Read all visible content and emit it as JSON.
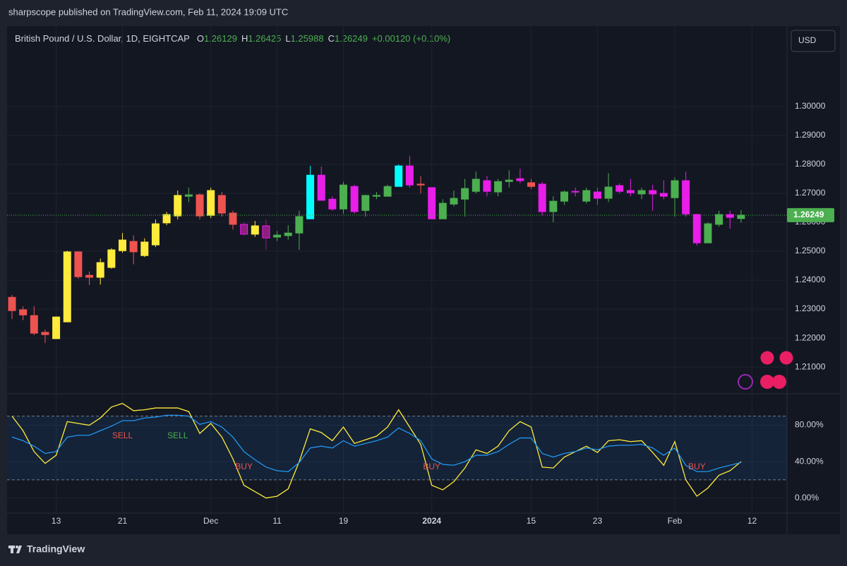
{
  "header": {
    "publisher": "sharpscope published on TradingView.com, Feb 11, 2024 19:09 UTC",
    "currency": "USD",
    "footer": "TradingView"
  },
  "chart_data": [
    {
      "type": "candlestick",
      "title": "British Pound / U.S. Dollar, 1D, EIGHTCAP",
      "legend_fields": [
        {
          "label": "O",
          "value": 1.26129
        },
        {
          "label": "H",
          "value": 1.26425
        },
        {
          "label": "L",
          "value": 1.25988
        },
        {
          "label": "C",
          "value": 1.26249
        }
      ],
      "change": "+0.00120 (+0.10%)",
      "last_price": 1.26249,
      "last_price_color": "#4caf50",
      "categories": [
        null,
        null,
        null,
        null,
        "13",
        null,
        null,
        null,
        null,
        null,
        "21",
        null,
        null,
        null,
        null,
        null,
        null,
        null,
        "Dec",
        null,
        null,
        null,
        null,
        null,
        "11",
        null,
        null,
        null,
        null,
        null,
        "19",
        null,
        null,
        null,
        null,
        null,
        null,
        null,
        "2024",
        null,
        null,
        null,
        null,
        null,
        null,
        null,
        null,
        "15",
        null,
        null,
        null,
        null,
        null,
        "23",
        null,
        null,
        null,
        null,
        null,
        null,
        "Feb",
        null,
        null,
        null,
        null,
        null,
        null,
        "12"
      ],
      "open": [
        1.2341,
        1.2298,
        1.2278,
        1.222,
        1.2198,
        1.2256,
        1.2498,
        1.2417,
        1.241,
        1.2444,
        1.2502,
        1.2534,
        1.2485,
        1.2522,
        1.2598,
        1.2622,
        1.269,
        1.2695,
        1.2624,
        1.2693,
        1.2632,
        1.2593,
        1.2559,
        1.2588,
        1.2549,
        1.2554,
        1.2563,
        1.2612,
        1.2763,
        1.268,
        1.2646,
        1.2724,
        1.2641,
        1.269,
        1.269,
        1.2724,
        1.2795,
        1.2732,
        1.272,
        1.2612,
        1.2663,
        1.268,
        1.2707,
        1.2744,
        1.2705,
        1.2741,
        1.2751,
        1.2737,
        1.2732,
        1.2637,
        1.2673,
        1.2707,
        1.2673,
        1.2705,
        1.2683,
        1.2727,
        1.271,
        1.2698,
        1.271,
        1.27,
        1.2685,
        1.2744,
        1.2627,
        1.2529,
        1.2593,
        1.2627,
        1.2613,
        null
      ],
      "high": [
        1.2349,
        1.231,
        1.231,
        1.223,
        1.2275,
        1.2502,
        1.25,
        1.243,
        1.2475,
        1.251,
        1.2563,
        1.2555,
        1.2545,
        1.261,
        1.2636,
        1.271,
        1.272,
        1.27,
        1.272,
        1.2705,
        1.264,
        1.26,
        1.2605,
        1.261,
        1.257,
        1.259,
        1.264,
        1.2795,
        1.2793,
        1.269,
        1.274,
        1.273,
        1.2695,
        1.2705,
        1.273,
        1.28,
        1.283,
        1.276,
        1.272,
        1.268,
        1.271,
        1.275,
        1.2775,
        1.276,
        1.275,
        1.278,
        1.2785,
        1.275,
        1.274,
        1.269,
        1.271,
        1.272,
        1.272,
        1.272,
        1.277,
        1.2735,
        1.275,
        1.272,
        1.273,
        1.2745,
        1.2755,
        1.2775,
        1.263,
        1.26,
        1.264,
        1.264,
        1.2642,
        null
      ],
      "low": [
        1.2266,
        1.2262,
        1.221,
        1.2183,
        1.2198,
        1.2256,
        1.2405,
        1.2383,
        1.2385,
        1.244,
        1.2495,
        1.2455,
        1.248,
        1.2515,
        1.259,
        1.261,
        1.267,
        1.261,
        1.2615,
        1.262,
        1.2575,
        1.2555,
        1.255,
        1.2505,
        1.2535,
        1.254,
        1.2505,
        1.2612,
        1.2676,
        1.264,
        1.263,
        1.263,
        1.262,
        1.268,
        1.269,
        1.2724,
        1.272,
        1.27,
        1.2612,
        1.2612,
        1.2655,
        1.262,
        1.27,
        1.269,
        1.269,
        1.272,
        1.2735,
        1.2715,
        1.2625,
        1.26,
        1.266,
        1.269,
        1.2665,
        1.266,
        1.267,
        1.27,
        1.269,
        1.268,
        1.264,
        1.268,
        1.262,
        1.262,
        1.252,
        1.2529,
        1.2585,
        1.2578,
        1.2599,
        null
      ],
      "close": [
        1.2295,
        1.228,
        1.2217,
        1.2212,
        1.2273,
        1.2498,
        1.2412,
        1.241,
        1.2461,
        1.2505,
        1.2539,
        1.2498,
        1.2532,
        1.2595,
        1.2627,
        1.2693,
        1.2695,
        1.2622,
        1.271,
        1.2632,
        1.2593,
        1.2559,
        1.2588,
        1.2546,
        1.2556,
        1.2563,
        1.262,
        1.2763,
        1.2676,
        1.2646,
        1.2729,
        1.2637,
        1.2693,
        1.2693,
        1.2724,
        1.2795,
        1.2729,
        1.2729,
        1.2612,
        1.2666,
        1.2683,
        1.2717,
        1.2749,
        1.2707,
        1.2741,
        1.2746,
        1.2744,
        1.2724,
        1.2637,
        1.2673,
        1.2705,
        1.2705,
        1.271,
        1.2683,
        1.2722,
        1.2707,
        1.2702,
        1.271,
        1.2698,
        1.269,
        1.2744,
        1.2629,
        1.2529,
        1.2595,
        1.2627,
        1.2617,
        1.2625,
        null
      ],
      "colors": [
        "#ef5350",
        "#ef5350",
        "#ef5350",
        "#ef5350",
        "#ffeb3b",
        "#ffeb3b",
        "#ef5350",
        "#ef5350",
        "#ffeb3b",
        "#ffeb3b",
        "#ffeb3b",
        "#ef5350",
        "#ffeb3b",
        "#ffeb3b",
        "#ffeb3b",
        "#ffeb3b",
        "#4caf50",
        "#ef5350",
        "#ffeb3b",
        "#ef5350",
        "#ef5350",
        "#8e1f7f",
        "#ffeb3b",
        "#8e1f7f",
        "#4caf50",
        "#4caf50",
        "#4caf50",
        "#00ffff",
        "#e91ee9",
        "#e91ee9",
        "#4caf50",
        "#e91ee9",
        "#4caf50",
        "#4caf50",
        "#4caf50",
        "#00ffff",
        "#e91ee9",
        "#ef5350",
        "#e91ee9",
        "#4caf50",
        "#4caf50",
        "#4caf50",
        "#4caf50",
        "#e91ee9",
        "#4caf50",
        "#4caf50",
        "#e91ee9",
        "#ef5350",
        "#e91ee9",
        "#4caf50",
        "#4caf50",
        "#e91ee9",
        "#4caf50",
        "#e91ee9",
        "#4caf50",
        "#e91ee9",
        "#e91ee9",
        "#4caf50",
        "#e91ee9",
        "#e91ee9",
        "#4caf50",
        "#e91ee9",
        "#e91ee9",
        "#4caf50",
        "#4caf50",
        "#e91ee9",
        "#4caf50",
        null
      ],
      "ylim": [
        1.201,
        1.3278
      ],
      "yticks": [
        {
          "value": 1.21,
          "label": "1.21000"
        },
        {
          "value": 1.22,
          "label": "1.22000"
        },
        {
          "value": 1.23,
          "label": "1.23000"
        },
        {
          "value": 1.24,
          "label": "1.24000"
        },
        {
          "value": 1.25,
          "label": "1.25000"
        },
        {
          "value": 1.26,
          "label": "1.26000"
        },
        {
          "value": 1.27,
          "label": "1.27000"
        },
        {
          "value": 1.28,
          "label": "1.28000"
        },
        {
          "value": 1.29,
          "label": "1.29000"
        },
        {
          "value": 1.3,
          "label": "1.30000"
        }
      ],
      "grid": true
    },
    {
      "type": "line",
      "ylim": [
        -15,
        113
      ],
      "yticks": [
        {
          "value": 0,
          "label": "0.00%"
        },
        {
          "value": 40,
          "label": "40.00%"
        },
        {
          "value": 80,
          "label": "80.00%"
        }
      ],
      "bands": [
        20,
        90
      ],
      "band_color": "#2196f3",
      "series": [
        {
          "color": "#ffeb3b",
          "values": [
            90,
            74,
            51,
            38,
            47,
            84,
            82,
            80,
            88,
            100,
            104,
            96,
            97,
            99,
            99,
            99,
            95,
            71,
            82,
            67,
            43,
            14,
            7,
            0,
            2,
            10,
            40,
            76,
            72,
            63,
            78,
            60,
            64,
            68,
            78,
            97,
            78,
            59,
            14,
            9,
            18,
            33,
            53,
            49,
            57,
            74,
            84,
            78,
            34,
            33,
            45,
            51,
            57,
            50,
            63,
            64,
            62,
            63,
            50,
            36,
            62,
            20,
            2,
            11,
            25,
            30,
            40,
            null
          ]
        },
        {
          "color": "#2196f3",
          "values": [
            67,
            63,
            57,
            49,
            51,
            67,
            69,
            69,
            74,
            79,
            85,
            85,
            88,
            89,
            91,
            91,
            90,
            81,
            84,
            78,
            67,
            51,
            42,
            34,
            30,
            29,
            39,
            55,
            57,
            55,
            63,
            57,
            60,
            63,
            67,
            77,
            71,
            63,
            43,
            37,
            36,
            40,
            47,
            47,
            51,
            59,
            66,
            66,
            49,
            45,
            49,
            51,
            55,
            53,
            57,
            58,
            58,
            59,
            55,
            47,
            55,
            36,
            29,
            29,
            33,
            36,
            39,
            null
          ]
        }
      ],
      "annotations": [
        {
          "text": "SELL",
          "index": 10,
          "value": 68,
          "color": "#ef5350"
        },
        {
          "text": "SELL",
          "index": 15,
          "value": 68,
          "color": "#4caf50"
        },
        {
          "text": "BUY",
          "index": 21,
          "value": 34,
          "color": "#ef5350"
        },
        {
          "text": "BUY",
          "index": 38,
          "value": 34,
          "color": "#ef5350"
        },
        {
          "text": "BUY",
          "index": 62,
          "value": 34,
          "color": "#ef5350"
        }
      ]
    }
  ]
}
